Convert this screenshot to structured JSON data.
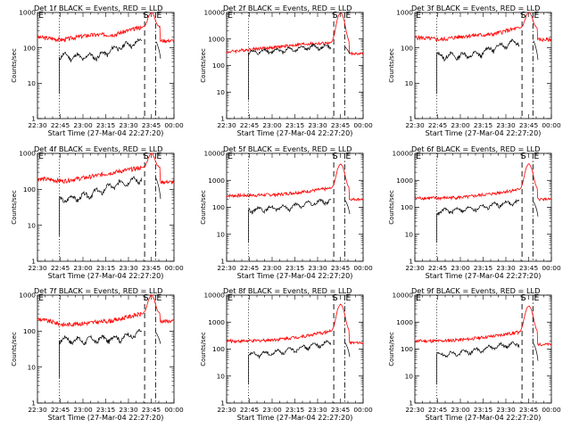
{
  "figure": {
    "line_colors": {
      "events": "#000000",
      "lld": "#ff0000"
    }
  },
  "chart_data": [
    {
      "type": "line",
      "title": "Det 1f BLACK = Events, RED = LLD",
      "xlabel": "Start Time (27-Mar-04 22:27:20)",
      "ylabel": "Counts/sec",
      "yscale": "log",
      "ylim": [
        1,
        1000
      ],
      "y_ticks": [
        "1",
        "10",
        "100",
        "1000"
      ],
      "x_ticks": [
        "22:30",
        "22:45",
        "23:00",
        "23:15",
        "23:30",
        "23:45",
        "00:00"
      ],
      "markers": [
        "S",
        "E"
      ],
      "red_base": [
        200,
        170,
        230,
        240,
        380
      ],
      "red_peak": 1000,
      "red_end": 160,
      "black_base": [
        60,
        55,
        60,
        110,
        150
      ],
      "black_end": 40
    },
    {
      "type": "line",
      "title": "Det 2f BLACK = Events, RED = LLD",
      "xlabel": "Start Time (27-Mar-04 22:27:20)",
      "ylabel": "Counts/sec",
      "yscale": "log",
      "ylim": [
        1,
        10000
      ],
      "y_ticks": [
        "1",
        "10",
        "100",
        "1000",
        "10000"
      ],
      "x_ticks": [
        "22:30",
        "22:45",
        "23:00",
        "23:15",
        "23:30",
        "23:45",
        "00:00"
      ],
      "markers": [
        "S",
        "E"
      ],
      "red_base": [
        320,
        420,
        500,
        650,
        700
      ],
      "red_peak": 9500,
      "red_end": 280,
      "black_base": [
        300,
        350,
        400,
        500,
        500
      ],
      "black_end": 250
    },
    {
      "type": "line",
      "title": "Det 3f BLACK = Events, RED = LLD",
      "xlabel": "Start Time (27-Mar-04 22:27:20)",
      "ylabel": "Counts/sec",
      "yscale": "log",
      "ylim": [
        1,
        1000
      ],
      "y_ticks": [
        "1",
        "10",
        "100",
        "1000"
      ],
      "x_ticks": [
        "22:30",
        "22:45",
        "23:00",
        "23:15",
        "23:30",
        "23:45",
        "00:00"
      ],
      "markers": [
        "S",
        "E"
      ],
      "red_base": [
        200,
        170,
        220,
        240,
        360
      ],
      "red_peak": 1000,
      "red_end": 170,
      "black_base": [
        60,
        60,
        65,
        110,
        160
      ],
      "black_end": 35
    },
    {
      "type": "line",
      "title": "Det 4f BLACK = Events, RED = LLD",
      "xlabel": "Start Time (27-Mar-04 22:27:20)",
      "ylabel": "Counts/sec",
      "yscale": "log",
      "ylim": [
        1,
        1000
      ],
      "y_ticks": [
        "1",
        "10",
        "100",
        "1000"
      ],
      "x_ticks": [
        "22:30",
        "22:45",
        "23:00",
        "23:15",
        "23:30",
        "23:45",
        "00:00"
      ],
      "markers": [
        "S",
        "E"
      ],
      "red_base": [
        200,
        170,
        220,
        300,
        400
      ],
      "red_peak": 1000,
      "red_end": 160,
      "black_base": [
        50,
        60,
        90,
        150,
        200
      ],
      "black_end": 40
    },
    {
      "type": "line",
      "title": "Det 5f BLACK = Events, RED = LLD",
      "xlabel": "Start Time (27-Mar-04 22:27:20)",
      "ylabel": "Counts/sec",
      "yscale": "log",
      "ylim": [
        1,
        10000
      ],
      "y_ticks": [
        "1",
        "10",
        "100",
        "1000",
        "10000"
      ],
      "x_ticks": [
        "22:30",
        "22:45",
        "23:00",
        "23:15",
        "23:30",
        "23:45",
        "00:00"
      ],
      "markers": [
        "S",
        "E"
      ],
      "red_base": [
        270,
        280,
        300,
        380,
        500
      ],
      "red_peak": 4000,
      "red_end": 200,
      "black_base": [
        80,
        90,
        100,
        140,
        180
      ],
      "black_end": 45
    },
    {
      "type": "line",
      "title": "Det 6f BLACK = Events, RED = LLD",
      "xlabel": "Start Time (27-Mar-04 22:27:20)",
      "ylabel": "Counts/sec",
      "yscale": "log",
      "ylim": [
        1,
        10000
      ],
      "y_ticks": [
        "1",
        "10",
        "100",
        "1000",
        "10000"
      ],
      "x_ticks": [
        "22:30",
        "22:45",
        "23:00",
        "23:15",
        "23:30",
        "23:45",
        "00:00"
      ],
      "markers": [
        "S",
        "E"
      ],
      "red_base": [
        220,
        220,
        240,
        320,
        450
      ],
      "red_peak": 4000,
      "red_end": 200,
      "black_base": [
        70,
        80,
        95,
        130,
        160
      ],
      "black_end": 35
    },
    {
      "type": "line",
      "title": "Det 7f BLACK = Events, RED = LLD",
      "xlabel": "Start Time (27-Mar-04 22:27:20)",
      "ylabel": "Counts/sec",
      "yscale": "log",
      "ylim": [
        1,
        1000
      ],
      "y_ticks": [
        "1",
        "10",
        "100",
        "1000"
      ],
      "x_ticks": [
        "22:30",
        "22:45",
        "23:00",
        "23:15",
        "23:30",
        "23:45",
        "00:00"
      ],
      "markers": [
        "S",
        "E"
      ],
      "red_base": [
        220,
        150,
        170,
        200,
        300
      ],
      "red_peak": 1000,
      "red_end": 190,
      "black_base": [
        60,
        55,
        60,
        65,
        90
      ],
      "black_end": 40
    },
    {
      "type": "line",
      "title": "Det 8f BLACK = Events, RED = LLD",
      "xlabel": "Start Time (27-Mar-04 22:27:20)",
      "ylabel": "Counts/sec",
      "yscale": "log",
      "ylim": [
        1,
        10000
      ],
      "y_ticks": [
        "1",
        "10",
        "100",
        "1000",
        "10000"
      ],
      "x_ticks": [
        "22:30",
        "22:45",
        "23:00",
        "23:15",
        "23:30",
        "23:45",
        "00:00"
      ],
      "markers": [
        "S",
        "E"
      ],
      "red_base": [
        200,
        200,
        230,
        300,
        450
      ],
      "red_peak": 4500,
      "red_end": 170,
      "black_base": [
        60,
        70,
        90,
        130,
        170
      ],
      "black_end": 40
    },
    {
      "type": "line",
      "title": "Det 9f BLACK = Events, RED = LLD",
      "xlabel": "Start Time (27-Mar-04 22:27:20)",
      "ylabel": "Counts/sec",
      "yscale": "log",
      "ylim": [
        1,
        10000
      ],
      "y_ticks": [
        "1",
        "10",
        "100",
        "1000",
        "10000"
      ],
      "x_ticks": [
        "22:30",
        "22:45",
        "23:00",
        "23:15",
        "23:30",
        "23:45",
        "00:00"
      ],
      "markers": [
        "S",
        "E"
      ],
      "red_base": [
        200,
        200,
        230,
        300,
        420
      ],
      "red_peak": 4000,
      "red_end": 150,
      "black_base": [
        60,
        70,
        90,
        130,
        160
      ],
      "black_end": 25
    }
  ]
}
